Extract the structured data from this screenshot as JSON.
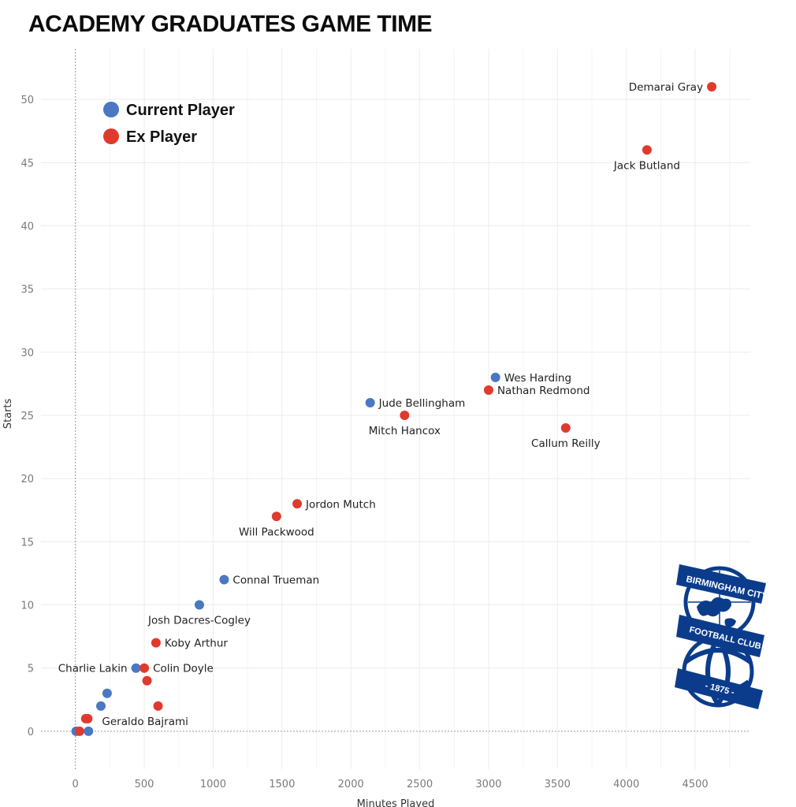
{
  "chart_data": {
    "type": "scatter",
    "title": "ACADEMY GRADUATES GAME TIME",
    "xlabel": "Minutes Played",
    "ylabel": "Starts",
    "xlim": [
      -250,
      4900
    ],
    "ylim": [
      -3,
      54
    ],
    "xticks": [
      0,
      500,
      1000,
      1500,
      2000,
      2500,
      3000,
      3500,
      4000,
      4500
    ],
    "yticks": [
      0,
      5,
      10,
      15,
      20,
      25,
      30,
      35,
      40,
      45,
      50
    ],
    "grid": true,
    "legend_position": "top-left",
    "colors": {
      "current": "#4a78c2",
      "ex": "#e03a2e"
    },
    "legend": [
      {
        "key": "current",
        "label": "Current Player"
      },
      {
        "key": "ex",
        "label": "Ex Player"
      }
    ],
    "points": [
      {
        "name": "Demarai Gray",
        "x": 4620,
        "y": 51,
        "group": "ex",
        "label_pos": "left"
      },
      {
        "name": "Jack Butland",
        "x": 4150,
        "y": 46,
        "group": "ex",
        "label_pos": "below"
      },
      {
        "name": "Wes Harding",
        "x": 3050,
        "y": 28,
        "group": "current",
        "label_pos": "right"
      },
      {
        "name": "Nathan Redmond",
        "x": 3000,
        "y": 27,
        "group": "ex",
        "label_pos": "right"
      },
      {
        "name": "Jude Bellingham",
        "x": 2140,
        "y": 26,
        "group": "current",
        "label_pos": "right"
      },
      {
        "name": "Mitch Hancox",
        "x": 2390,
        "y": 25,
        "group": "ex",
        "label_pos": "below"
      },
      {
        "name": "Callum Reilly",
        "x": 3560,
        "y": 24,
        "group": "ex",
        "label_pos": "below"
      },
      {
        "name": "Jordon Mutch",
        "x": 1610,
        "y": 18,
        "group": "ex",
        "label_pos": "right"
      },
      {
        "name": "Will Packwood",
        "x": 1460,
        "y": 17,
        "group": "ex",
        "label_pos": "below"
      },
      {
        "name": "Connal Trueman",
        "x": 1080,
        "y": 12,
        "group": "current",
        "label_pos": "right"
      },
      {
        "name": "Josh Dacres-Cogley",
        "x": 900,
        "y": 10,
        "group": "current",
        "label_pos": "below"
      },
      {
        "name": "Koby Arthur",
        "x": 585,
        "y": 7,
        "group": "ex",
        "label_pos": "right"
      },
      {
        "name": "Charlie Lakin",
        "x": 440,
        "y": 5,
        "group": "current",
        "label_pos": "left"
      },
      {
        "name": "Colin Doyle",
        "x": 500,
        "y": 5,
        "group": "ex",
        "label_pos": "right"
      },
      {
        "name": "",
        "x": 520,
        "y": 4,
        "group": "ex",
        "label_pos": "none"
      },
      {
        "name": "",
        "x": 230,
        "y": 3,
        "group": "current",
        "label_pos": "none"
      },
      {
        "name": "",
        "x": 185,
        "y": 2,
        "group": "current",
        "label_pos": "none"
      },
      {
        "name": "",
        "x": 600,
        "y": 2,
        "group": "ex",
        "label_pos": "none"
      },
      {
        "name": "Geraldo Bajrami",
        "x": 90,
        "y": 1,
        "group": "ex",
        "label_pos": "below-right"
      },
      {
        "name": "",
        "x": 75,
        "y": 1,
        "group": "ex",
        "label_pos": "none"
      },
      {
        "name": "",
        "x": 5,
        "y": 0,
        "group": "current",
        "label_pos": "none"
      },
      {
        "name": "",
        "x": 30,
        "y": 0,
        "group": "ex",
        "label_pos": "none"
      },
      {
        "name": "",
        "x": 95,
        "y": 0,
        "group": "current",
        "label_pos": "none"
      }
    ]
  },
  "crest": {
    "top_text": "BIRMINGHAM CITY",
    "middle_text": "FOOTBALL CLUB",
    "bottom_text": "- 1875 -",
    "color": "#0b3c8c"
  }
}
